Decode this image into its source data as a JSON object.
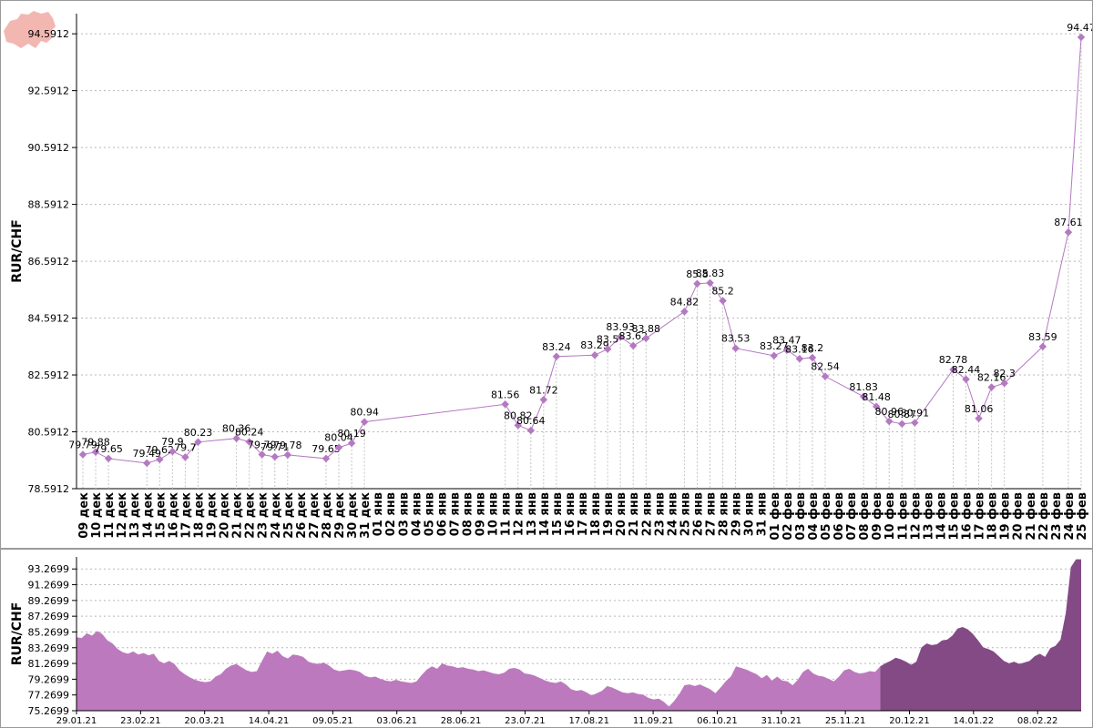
{
  "chart_data": [
    {
      "type": "line",
      "ylabel": "RUR/CHF ",
      "yticks": [
        "78.5912",
        "80.5912",
        "82.5912",
        "84.5912",
        "86.5912",
        "88.5912",
        "90.5912",
        "92.5912",
        "94.5912"
      ],
      "ylim": [
        78.5912,
        95.3
      ],
      "grid": true,
      "categories": [
        "09 дек",
        "10 дек",
        "11 дек",
        "12 дек",
        "13 дек",
        "14 дек",
        "15 дек",
        "16 дек",
        "17 дек",
        "18 дек",
        "19 дек",
        "20 дек",
        "21 дек",
        "22 дек",
        "23 дек",
        "24 дек",
        "25 дек",
        "26 дек",
        "27 дек",
        "28 дек",
        "29 дек",
        "30 дек",
        "31 дек",
        "01 янв",
        "02 янв",
        "03 янв",
        "04 янв",
        "05 янв",
        "06 янв",
        "07 янв",
        "08 янв",
        "09 янв",
        "10 янв",
        "11 янв",
        "12 янв",
        "13 янв",
        "14 янв",
        "15 янв",
        "16 янв",
        "17 янв",
        "18 янв",
        "19 янв",
        "20 янв",
        "21 янв",
        "22 янв",
        "23 янв",
        "24 янв",
        "25 янв",
        "26 янв",
        "27 янв",
        "28 янв",
        "29 янв",
        "30 янв",
        "31 янв",
        "01 фев",
        "02 фев",
        "03 фев",
        "04 фев",
        "05 фев",
        "06 фев",
        "07 фев",
        "08 фев",
        "09 фев",
        "10 фев",
        "11 фев",
        "12 фев",
        "13 фев",
        "14 фев",
        "15 фев",
        "16 фев",
        "17 фев",
        "18 фев",
        "19 фев",
        "20 фев",
        "21 фев",
        "22 фев",
        "23 фев",
        "24 фев",
        "25 фев"
      ],
      "series": [
        {
          "color": "#b479c1",
          "points": [
            {
              "x": "09 дек",
              "y": 79.79,
              "label": "79.79"
            },
            {
              "x": "10 дек",
              "y": 79.88,
              "label": "79.88"
            },
            {
              "x": "11 дек",
              "y": 79.65,
              "label": "79.65"
            },
            {
              "x": "14 дек",
              "y": 79.49,
              "label": "79.49"
            },
            {
              "x": "15 дек",
              "y": 79.62,
              "label": "79.62"
            },
            {
              "x": "16 дек",
              "y": 79.9,
              "label": "79.9"
            },
            {
              "x": "17 дек",
              "y": 79.7,
              "label": "79.7"
            },
            {
              "x": "18 дек",
              "y": 80.23,
              "label": "80.23"
            },
            {
              "x": "21 дек",
              "y": 80.36,
              "label": "80.36"
            },
            {
              "x": "22 дек",
              "y": 80.24,
              "label": "80.24"
            },
            {
              "x": "23 дек",
              "y": 79.79,
              "label": "79.79"
            },
            {
              "x": "24 дек",
              "y": 79.71,
              "label": "79.71"
            },
            {
              "x": "25 дек",
              "y": 79.78,
              "label": "79.78"
            },
            {
              "x": "28 дек",
              "y": 79.65,
              "label": "79.65"
            },
            {
              "x": "29 дек",
              "y": 80.04,
              "label": "80.04"
            },
            {
              "x": "30 дек",
              "y": 80.19,
              "label": "80.19"
            },
            {
              "x": "31 дек",
              "y": 80.94,
              "label": "80.94"
            },
            {
              "x": "11 янв",
              "y": 81.56,
              "label": "81.56"
            },
            {
              "x": "12 янв",
              "y": 80.82,
              "label": "80.82"
            },
            {
              "x": "13 янв",
              "y": 80.64,
              "label": "80.64"
            },
            {
              "x": "14 янв",
              "y": 81.72,
              "label": "81.72"
            },
            {
              "x": "15 янв",
              "y": 83.24,
              "label": "83.24"
            },
            {
              "x": "18 янв",
              "y": 83.29,
              "label": "83.29"
            },
            {
              "x": "19 янв",
              "y": 83.5,
              "label": "83.5"
            },
            {
              "x": "20 янв",
              "y": 83.93,
              "label": "83.93"
            },
            {
              "x": "21 янв",
              "y": 83.62,
              "label": "83.62"
            },
            {
              "x": "22 янв",
              "y": 83.88,
              "label": "83.88"
            },
            {
              "x": "25 янв",
              "y": 84.82,
              "label": "84.82"
            },
            {
              "x": "26 янв",
              "y": 85.8,
              "label": "85.8"
            },
            {
              "x": "27 янв",
              "y": 85.83,
              "label": "85.83"
            },
            {
              "x": "28 янв",
              "y": 85.2,
              "label": "85.2"
            },
            {
              "x": "29 янв",
              "y": 83.53,
              "label": "83.53"
            },
            {
              "x": "01 фев",
              "y": 83.27,
              "label": "83.27"
            },
            {
              "x": "02 фев",
              "y": 83.47,
              "label": "83.47"
            },
            {
              "x": "03 фев",
              "y": 83.16,
              "label": "83.16"
            },
            {
              "x": "04 фев",
              "y": 83.2,
              "label": "83.2"
            },
            {
              "x": "05 фев",
              "y": 82.54,
              "label": "82.54"
            },
            {
              "x": "08 фев",
              "y": 81.83,
              "label": "81.83"
            },
            {
              "x": "09 фев",
              "y": 81.48,
              "label": "81.48"
            },
            {
              "x": "10 фев",
              "y": 80.96,
              "label": "80.96"
            },
            {
              "x": "11 фев",
              "y": 80.87,
              "label": "80.87"
            },
            {
              "x": "12 фев",
              "y": 80.91,
              "label": "80.91"
            },
            {
              "x": "15 фев",
              "y": 82.78,
              "label": "82.78"
            },
            {
              "x": "16 фев",
              "y": 82.44,
              "label": "82.44"
            },
            {
              "x": "17 фев",
              "y": 81.06,
              "label": "81.06"
            },
            {
              "x": "18 фев",
              "y": 82.16,
              "label": "82.16"
            },
            {
              "x": "19 фев",
              "y": 82.3,
              "label": "82.3"
            },
            {
              "x": "22 фев",
              "y": 83.59,
              "label": "83.59"
            },
            {
              "x": "24 фев",
              "y": 87.61,
              "label": "87.61"
            },
            {
              "x": "25 фев",
              "y": 94.47,
              "label": "94.47"
            }
          ]
        }
      ]
    },
    {
      "type": "area",
      "ylabel": "RUR/CHF ",
      "yticks": [
        "75.2699",
        "77.2699",
        "79.2699",
        "81.2699",
        "83.2699",
        "85.2699",
        "87.2699",
        "89.2699",
        "91.2699",
        "93.2699"
      ],
      "ylim": [
        75.2699,
        94.8
      ],
      "grid": true,
      "xtick_labels": [
        "29.01.21",
        "23.02.21",
        "20.03.21",
        "14.04.21",
        "09.05.21",
        "03.06.21",
        "28.06.21",
        "23.07.21",
        "17.08.21",
        "11.09.21",
        "06.10.21",
        "31.10.21",
        "25.11.21",
        "20.12.21",
        "14.01.22",
        "08.02.22"
      ],
      "x_range": [
        "29.01.21",
        "25.02.22"
      ],
      "highlight_start": "09.12.21",
      "colors": {
        "base": "#bd79be",
        "highlight": "#834a86"
      },
      "values": [
        84.6,
        84.5,
        85.1,
        84.8,
        85.4,
        85.0,
        84.2,
        83.8,
        83.1,
        82.7,
        82.5,
        82.8,
        82.4,
        82.6,
        82.3,
        82.5,
        81.6,
        81.3,
        81.6,
        81.2,
        80.4,
        79.9,
        79.5,
        79.2,
        79.0,
        78.9,
        79.0,
        79.6,
        79.9,
        80.6,
        81.0,
        81.2,
        80.8,
        80.4,
        80.2,
        80.3,
        81.6,
        82.8,
        82.5,
        82.9,
        82.2,
        81.9,
        82.4,
        82.3,
        82.1,
        81.5,
        81.3,
        81.2,
        81.4,
        81.0,
        80.5,
        80.3,
        80.4,
        80.5,
        80.4,
        80.2,
        79.7,
        79.5,
        79.6,
        79.3,
        79.1,
        79.0,
        79.2,
        79.0,
        78.9,
        78.8,
        79.0,
        79.8,
        80.5,
        80.9,
        80.6,
        81.3,
        81.0,
        80.9,
        80.7,
        80.8,
        80.6,
        80.5,
        80.3,
        80.4,
        80.2,
        80.0,
        79.9,
        80.1,
        80.6,
        80.7,
        80.5,
        80.0,
        79.9,
        79.7,
        79.4,
        79.1,
        78.9,
        78.8,
        79.0,
        78.6,
        78.0,
        77.8,
        77.9,
        77.6,
        77.2,
        77.5,
        77.8,
        78.4,
        78.2,
        77.9,
        77.6,
        77.5,
        77.6,
        77.4,
        77.3,
        76.9,
        76.7,
        76.8,
        76.4,
        75.8,
        76.5,
        77.4,
        78.5,
        78.6,
        78.4,
        78.6,
        78.3,
        78.0,
        77.5,
        78.2,
        79.0,
        79.6,
        80.9,
        80.7,
        80.5,
        80.2,
        79.9,
        79.4,
        79.8,
        79.1,
        79.6,
        79.1,
        79.0,
        78.5,
        79.2,
        80.2,
        80.6,
        80.0,
        79.7,
        79.6,
        79.3,
        79.0,
        79.6,
        80.4,
        80.6,
        80.2,
        80.0,
        80.1,
        80.3,
        80.2,
        80.9,
        81.3,
        81.6,
        82.0,
        81.8,
        81.5,
        81.1,
        81.5,
        83.3,
        83.8,
        83.6,
        83.7,
        84.2,
        84.3,
        84.8,
        85.7,
        85.9,
        85.6,
        85.0,
        84.2,
        83.3,
        83.1,
        82.8,
        82.2,
        81.6,
        81.3,
        81.5,
        81.2,
        81.4,
        81.6,
        82.2,
        82.5,
        82.1,
        83.2,
        83.5,
        84.3,
        87.6,
        93.5,
        94.5,
        94.5
      ]
    }
  ]
}
